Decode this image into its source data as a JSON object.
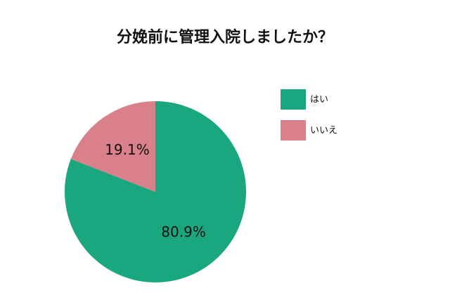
{
  "chart_data": {
    "type": "pie",
    "title": "分娩前に管理入院しましたか？",
    "categories": [
      "はい",
      "いいえ"
    ],
    "values": [
      80.9,
      19.1
    ],
    "value_labels": [
      "80.9%",
      "19.1%"
    ],
    "colors": [
      "#1aa77f",
      "#d9808a"
    ],
    "legend": "top-right"
  }
}
